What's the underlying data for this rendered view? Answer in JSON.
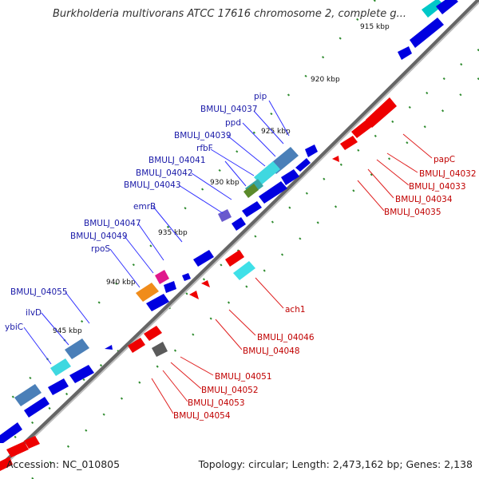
{
  "header": {
    "title": "Burkholderia multivorans ATCC 17616 chromosome 2, complete g..."
  },
  "footer": {
    "accession": "Accession: NC_010805",
    "summary": "Topology: circular; Length: 2,473,162 bp; Genes: 2,138"
  },
  "scale": {
    "ticks": [
      "915 kbp",
      "920 kbp",
      "925 kbp",
      "930 kbp",
      "935 kbp",
      "940 kbp",
      "945 kbp"
    ]
  },
  "labels": {
    "plus": [
      "pip",
      "BMULJ_04037",
      "ppd",
      "BMULJ_04039",
      "rfbF",
      "BMULJ_04041",
      "BMULJ_04042",
      "BMULJ_04043",
      "emrB",
      "BMULJ_04047",
      "BMULJ_04049",
      "rpoS",
      "BMULJ_04055",
      "ilvD",
      "ybiC"
    ],
    "minus": [
      "papC",
      "BMULJ_04032",
      "BMULJ_04033",
      "BMULJ_04034",
      "BMULJ_04035",
      "ach1",
      "BMULJ_04046",
      "BMULJ_04048",
      "BMULJ_04051",
      "BMULJ_04052",
      "BMULJ_04053",
      "BMULJ_04054"
    ]
  },
  "colors": {
    "plus_strand": "#0000e0",
    "minus_strand": "#ee0000",
    "plus_label": "#1a1aa8",
    "minus_label": "#c00000",
    "backbone": "#777777",
    "gc_marks": "#228b22"
  }
}
